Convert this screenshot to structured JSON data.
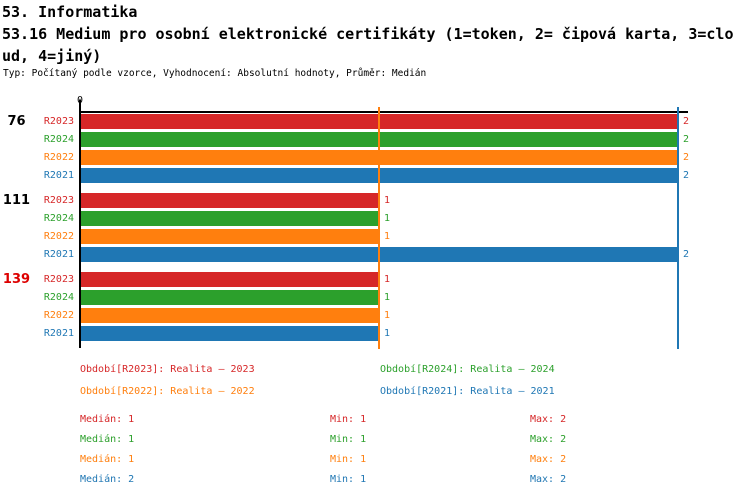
{
  "header": {
    "line1": "53. Informatika",
    "line2": "53.16 Medium pro osobní elektronické certifikáty (1=token, 2= čipová karta, 3=clo",
    "line3": "ud, 4=jiný)",
    "meta": "Typ: Počítaný podle vzorce, Vyhodnocení: Absolutní hodnoty, Průměr: Medián"
  },
  "colors": {
    "r2023": "#d62728",
    "r2024": "#2ca02c",
    "r2022": "#ff7f0e",
    "r2021": "#1f77b4",
    "axis": "#000000",
    "highlight_group": "#dd0000"
  },
  "chart_data": {
    "type": "bar",
    "orientation": "horizontal",
    "xlim": [
      0,
      2
    ],
    "x_origin_label": "0",
    "grid": false,
    "series_colors": {
      "R2023": "#d62728",
      "R2024": "#2ca02c",
      "R2022": "#ff7f0e",
      "R2021": "#1f77b4"
    },
    "groups": [
      {
        "label": "76",
        "label_color": "#000000",
        "bars": [
          {
            "series": "R2023",
            "value": 2
          },
          {
            "series": "R2024",
            "value": 2
          },
          {
            "series": "R2022",
            "value": 2
          },
          {
            "series": "R2021",
            "value": 2
          }
        ]
      },
      {
        "label": "111",
        "label_color": "#000000",
        "bars": [
          {
            "series": "R2023",
            "value": 1
          },
          {
            "series": "R2024",
            "value": 1
          },
          {
            "series": "R2022",
            "value": 1
          },
          {
            "series": "R2021",
            "value": 2
          }
        ]
      },
      {
        "label": "139",
        "label_color": "#dd0000",
        "bars": [
          {
            "series": "R2023",
            "value": 1
          },
          {
            "series": "R2024",
            "value": 1
          },
          {
            "series": "R2022",
            "value": 1
          },
          {
            "series": "R2021",
            "value": 1
          }
        ]
      }
    ],
    "reference_lines": [
      {
        "value": 1,
        "color": "#ff7f0e"
      },
      {
        "value": 2,
        "color": "#1f77b4"
      }
    ]
  },
  "legend": {
    "rows": [
      [
        {
          "text": "Období[R2023]: Realita – 2023",
          "color": "#d62728"
        },
        {
          "text": "Období[R2024]: Realita – 2024",
          "color": "#2ca02c"
        }
      ],
      [
        {
          "text": "Období[R2022]: Realita – 2022",
          "color": "#ff7f0e"
        },
        {
          "text": "Období[R2021]: Realita – 2021",
          "color": "#1f77b4"
        }
      ]
    ]
  },
  "stats": {
    "rows": [
      {
        "color": "#d62728",
        "median": "Medián: 1",
        "min": "Min: 1",
        "max": "Max: 2"
      },
      {
        "color": "#2ca02c",
        "median": "Medián: 1",
        "min": "Min: 1",
        "max": "Max: 2"
      },
      {
        "color": "#ff7f0e",
        "median": "Medián: 1",
        "min": "Min: 1",
        "max": "Max: 2"
      },
      {
        "color": "#1f77b4",
        "median": "Medián: 2",
        "min": "Min: 1",
        "max": "Max: 2"
      }
    ]
  }
}
